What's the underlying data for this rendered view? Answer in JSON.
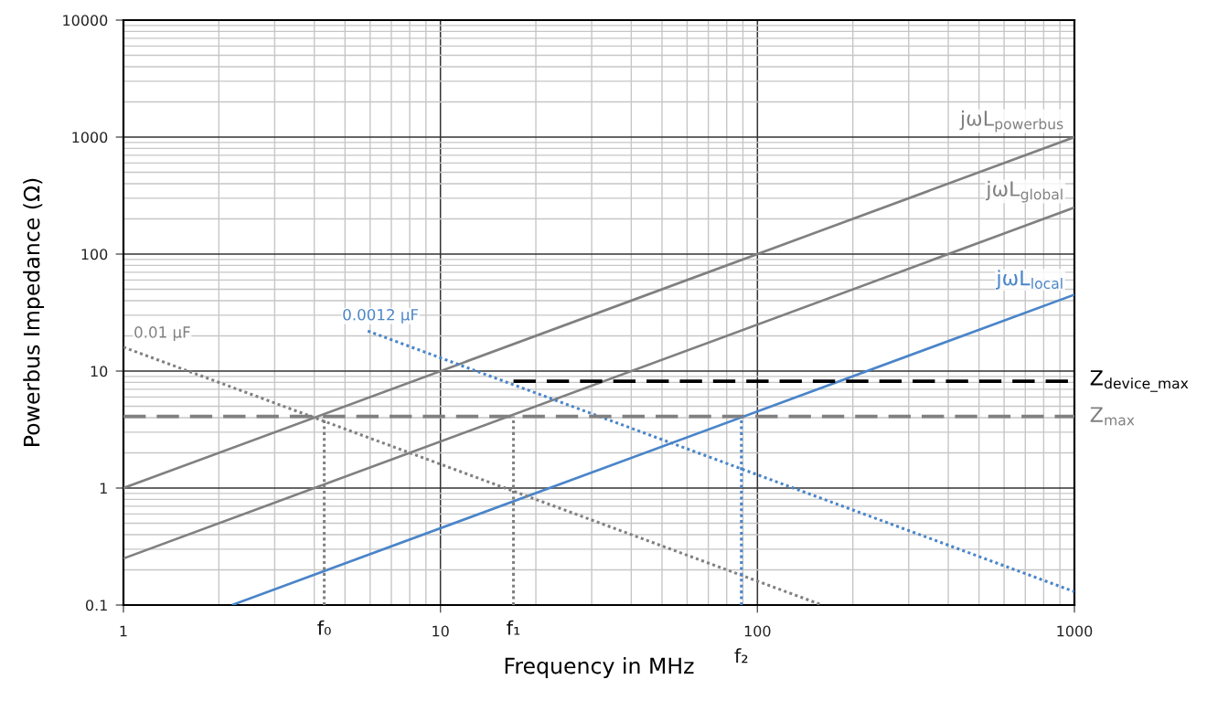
{
  "chart_data": {
    "type": "line",
    "xlabel": "Frequency in MHz",
    "ylabel": "Powerbus Impedance (Ω)",
    "log": "xy",
    "xlim": [
      1,
      1000
    ],
    "ylim": [
      0.1,
      10000
    ],
    "xticks": [
      1,
      10,
      100,
      1000
    ],
    "yticks": [
      0.1,
      1,
      10,
      100,
      1000,
      10000
    ],
    "grid": true,
    "series": [
      {
        "name": "jωL$_{powerbus}$",
        "color": "#808080",
        "line_style": "solid",
        "x": [
          1,
          1000
        ],
        "values": [
          1,
          1000
        ]
      },
      {
        "name": "jωL$_{global}$",
        "color": "#808080",
        "line_style": "solid",
        "x": [
          1,
          1000
        ],
        "values": [
          0.25,
          250
        ]
      },
      {
        "name": "jωL$_{local}$",
        "color": "#4a85c9",
        "line_style": "solid",
        "x": [
          2.2,
          1000
        ],
        "values": [
          0.1,
          45
        ]
      },
      {
        "name": "0.01 μF",
        "color": "#808080",
        "line_style": "dotted",
        "x": [
          1,
          160
        ],
        "values": [
          16,
          0.1
        ]
      },
      {
        "name": "0.0012 μF",
        "color": "#4a85c9",
        "line_style": "dotted",
        "x": [
          5.9,
          1000
        ],
        "values": [
          22,
          0.13
        ]
      },
      {
        "name": "Z$_{device_max}$",
        "color": "#000000",
        "line_style": "dashed",
        "x": [
          17,
          1000
        ],
        "values": [
          8.2,
          8.2
        ]
      },
      {
        "name": "Z$_{max}$",
        "color": "#808080",
        "line_style": "dashed",
        "x": [
          1,
          1000
        ],
        "values": [
          4.1,
          4.1
        ]
      },
      {
        "color": "#808080",
        "line_style": "dotted",
        "x": [
          4.3,
          4.3
        ],
        "values": [
          0.1,
          4.1
        ]
      },
      {
        "color": "#808080",
        "line_style": "dotted",
        "x": [
          17,
          17
        ],
        "values": [
          0.1,
          4.1
        ]
      },
      {
        "color": "#4a85c9",
        "line_style": "dotted",
        "x": [
          89,
          89
        ],
        "values": [
          0.1,
          4.1
        ]
      }
    ],
    "annotations": [
      {
        "text": "f₀",
        "x": 4.3,
        "y": 0.1
      },
      {
        "text": "f₁",
        "x": 17,
        "y": 0.1
      },
      {
        "text": "f₂",
        "x": 89,
        "y": 0.1
      }
    ]
  }
}
